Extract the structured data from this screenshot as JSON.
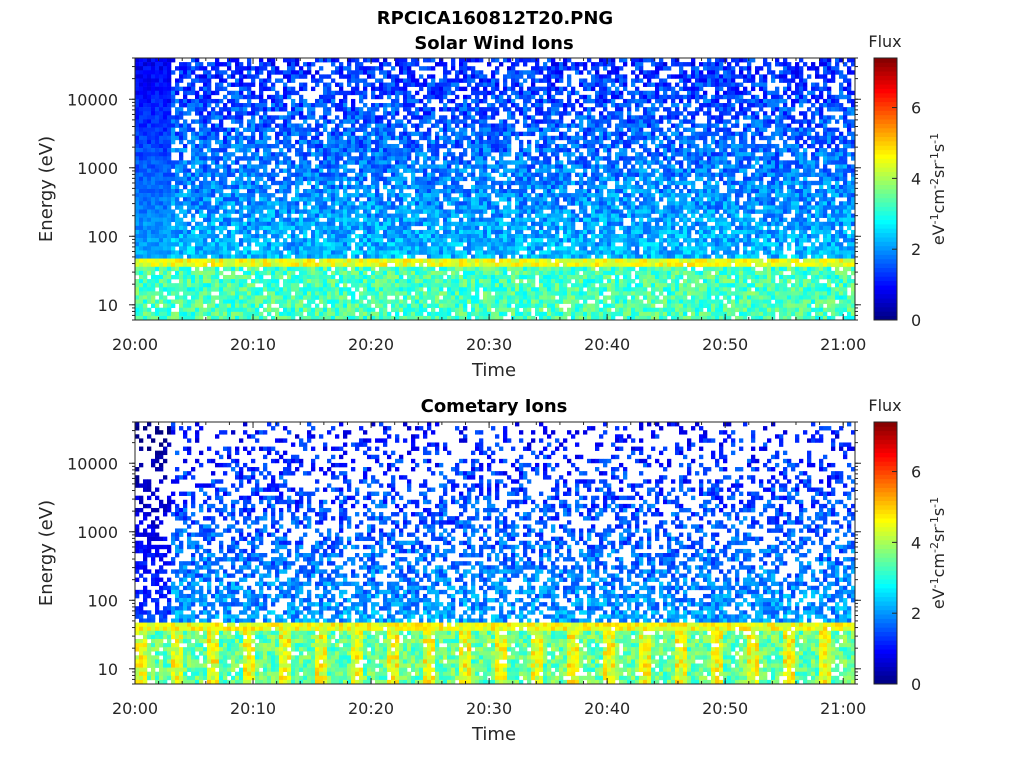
{
  "figure": {
    "title": "RPCICA160812T20.PNG"
  },
  "chart_data": [
    {
      "type": "heatmap",
      "title": "Solar Wind Ions",
      "xlabel": "Time",
      "ylabel": "Energy (eV)",
      "x_ticks": [
        "20:00",
        "20:10",
        "20:20",
        "20:30",
        "20:40",
        "20:50",
        "21:00"
      ],
      "x_range": [
        "20:00",
        "21:01"
      ],
      "y_ticks": [
        10,
        100,
        1000,
        10000
      ],
      "y_range": [
        6,
        40000
      ],
      "y_scale": "log",
      "colorbar": {
        "label": "Flux",
        "unit": "eV-1cm-2sr-1s-1",
        "range": [
          0,
          7.4
        ],
        "ticks": [
          0,
          2,
          4,
          6
        ],
        "colormap": "jet"
      },
      "features": {
        "dense_block_end": "20:03",
        "band_energy_eV": 40,
        "band_flux": 4.5,
        "low_energy_flux": 3.3,
        "background_flux": 1.2
      }
    },
    {
      "type": "heatmap",
      "title": "Cometary Ions",
      "xlabel": "Time",
      "ylabel": "Energy (eV)",
      "x_ticks": [
        "20:00",
        "20:10",
        "20:20",
        "20:30",
        "20:40",
        "20:50",
        "21:00"
      ],
      "x_range": [
        "20:00",
        "21:01"
      ],
      "y_ticks": [
        10,
        100,
        1000,
        10000
      ],
      "y_range": [
        6,
        40000
      ],
      "y_scale": "log",
      "colorbar": {
        "label": "Flux",
        "unit": "eV-1cm-2sr-1s-1",
        "range": [
          0,
          7.4
        ],
        "ticks": [
          0,
          2,
          4,
          6
        ],
        "colormap": "jet"
      },
      "features": {
        "dense_block_end": "20:03",
        "band_energy_eV": 40,
        "band_flux": 4.6,
        "low_energy_flux": 3.5,
        "background_flux": 1.0
      }
    }
  ]
}
